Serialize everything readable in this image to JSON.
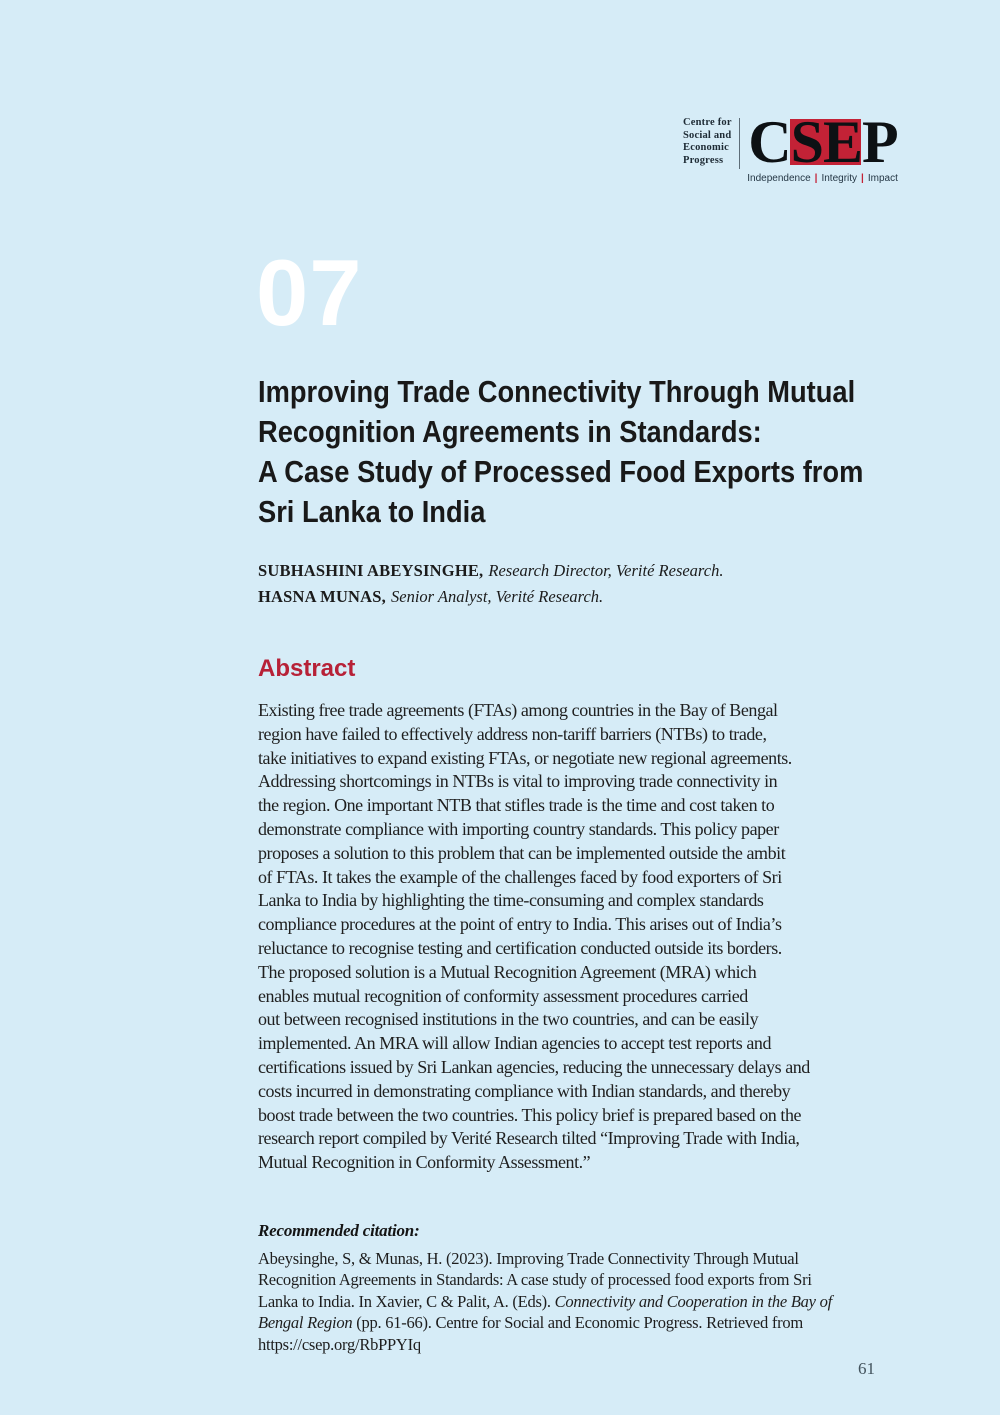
{
  "page": {
    "bg": "#d6ecf7",
    "number": "61"
  },
  "logo": {
    "org_lines": [
      "Centre for",
      "Social and",
      "Economic",
      "Progress"
    ],
    "acronym": [
      {
        "letter": "C",
        "boxed": false
      },
      {
        "letter": "S",
        "boxed": true
      },
      {
        "letter": "E",
        "boxed": true
      },
      {
        "letter": "P",
        "boxed": false
      }
    ],
    "tagline": {
      "items": [
        "Independence",
        "Integrity",
        "Impact"
      ],
      "separator": "|"
    },
    "red": "#c32236"
  },
  "chapter": {
    "number": "07",
    "color": "#ffffff"
  },
  "title": {
    "lines": [
      "Improving Trade Connectivity Through Mutual",
      "Recognition Agreements in Standards:",
      "A Case Study of Processed Food Exports from",
      "Sri Lanka to India"
    ]
  },
  "authors": [
    {
      "name": "SUBHASHINI ABEYSINGHE,",
      "role": "Research Director, Verité Research."
    },
    {
      "name": "HASNA MUNAS,",
      "role": "Senior Analyst, Verité Research."
    }
  ],
  "abstract": {
    "heading": "Abstract",
    "heading_color": "#b72137",
    "lines": [
      "Existing free trade agreements (FTAs) among countries in the Bay of Bengal",
      "region have failed to effectively address non-tariff barriers (NTBs) to trade,",
      "take initiatives to expand existing FTAs, or negotiate new regional agreements.",
      "Addressing shortcomings in NTBs is vital to improving trade connectivity in",
      "the region. One important NTB that stifles trade is the time and cost taken to",
      "demonstrate compliance with importing country standards. This policy paper",
      "proposes a solution to this problem that can be implemented outside the ambit",
      "of FTAs. It takes the example of the challenges faced by food exporters of Sri",
      "Lanka to India by highlighting the time-consuming and complex standards",
      "compliance procedures at the point of entry to India. This arises out of India’s",
      "reluctance to recognise testing and certification conducted outside its borders.",
      "The proposed solution is a Mutual Recognition Agreement (MRA) which",
      "enables mutual recognition of conformity assessment procedures carried",
      "out between recognised institutions in the two countries, and can be easily",
      "implemented. An MRA will allow Indian agencies to accept test reports and",
      "certifications issued by Sri Lankan agencies, reducing the unnecessary delays and",
      "costs incurred in demonstrating compliance with Indian standards, and thereby",
      "boost trade between the two countries. This policy brief is prepared based on the",
      "research report compiled by Verité Research tilted “Improving Trade with India,",
      "Mutual Recognition in Conformity Assessment.”"
    ]
  },
  "citation": {
    "heading": "Recommended citation:",
    "lines": [
      [
        {
          "t": "Abeysinghe, S, & Munas, H. (2023). Improving Trade Connectivity Through Mutual"
        }
      ],
      [
        {
          "t": "Recognition Agreements in Standards: A case study of processed food exports from Sri"
        }
      ],
      [
        {
          "t": "Lanka to India. In Xavier, C & Palit, A. (Eds). "
        },
        {
          "t": "Connectivity and Cooperation in the Bay of",
          "i": true
        }
      ],
      [
        {
          "t": "Bengal Region",
          "i": true
        },
        {
          "t": " (pp. 61-66). Centre for Social and Economic Progress. Retrieved from"
        }
      ],
      [
        {
          "t": "https://csep.org/RbPPYIq"
        }
      ]
    ]
  }
}
